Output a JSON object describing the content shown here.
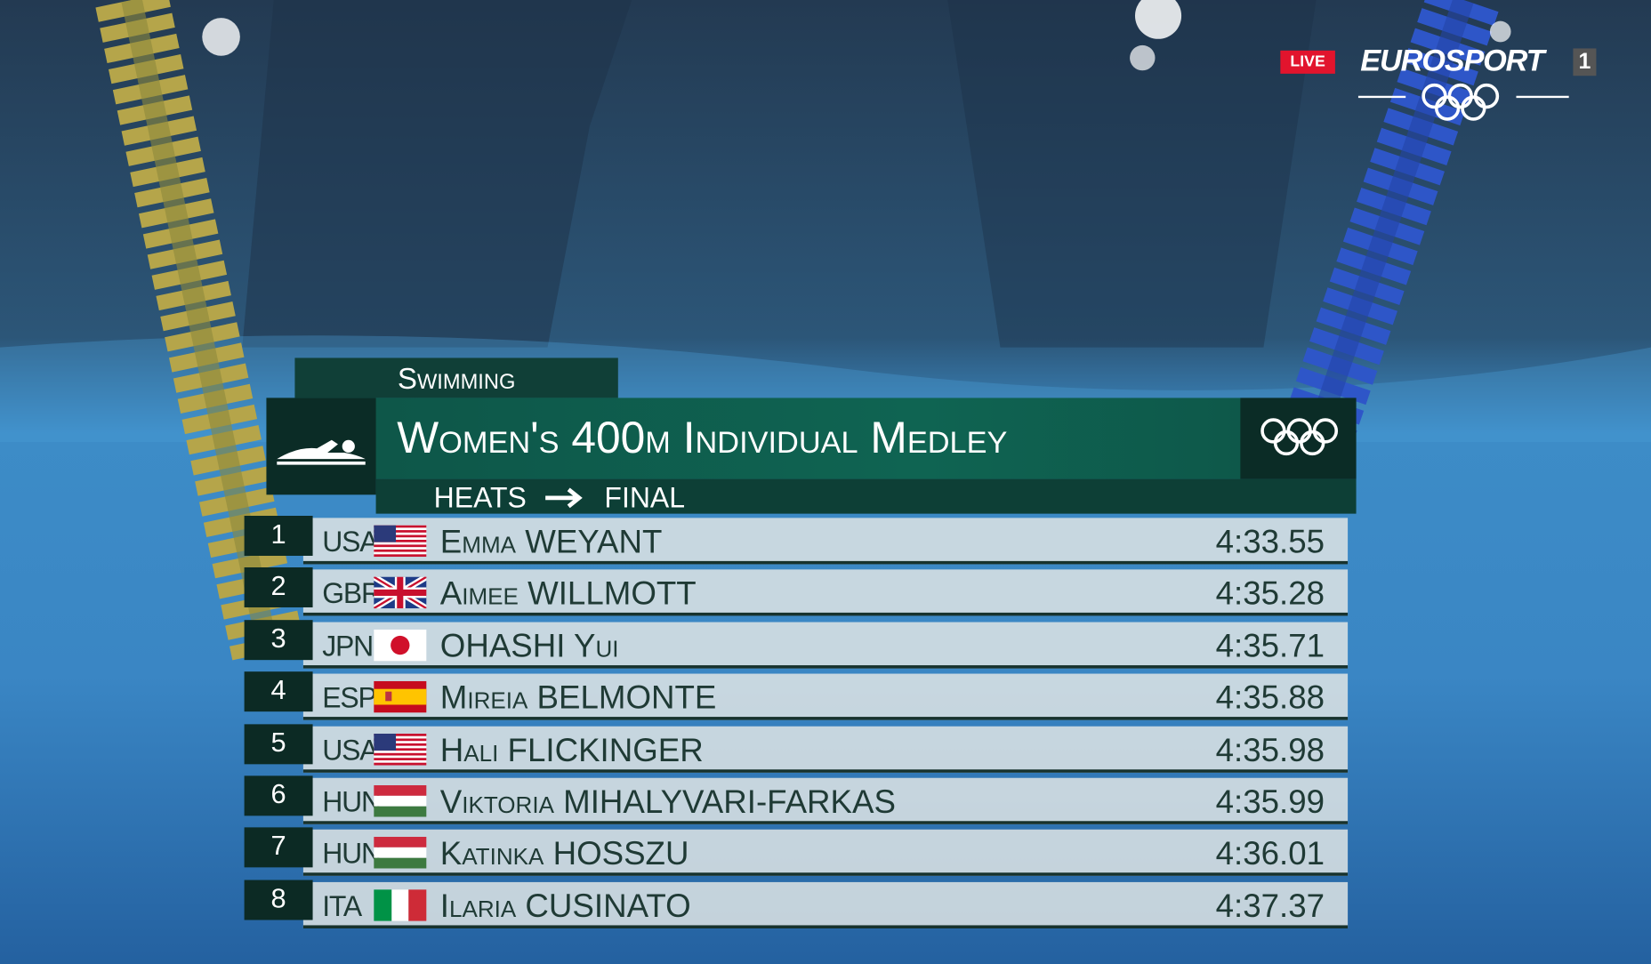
{
  "broadcast": {
    "live": "LIVE",
    "channel": "EUROSPORT",
    "channel_number": "1"
  },
  "graphic": {
    "sport": "Swimming",
    "event": "Women's 400m Individual Medley",
    "stage_from": "HEATS",
    "stage_to": "FINAL"
  },
  "results": [
    {
      "rank": 1,
      "country": "USA",
      "name": "Emma WEYANT",
      "time": "4:33.55"
    },
    {
      "rank": 2,
      "country": "GBR",
      "name": "Aimee WILLMOTT",
      "time": "4:35.28"
    },
    {
      "rank": 3,
      "country": "JPN",
      "name": "OHASHI Yui",
      "time": "4:35.71"
    },
    {
      "rank": 4,
      "country": "ESP",
      "name": "Mireia BELMONTE",
      "time": "4:35.88"
    },
    {
      "rank": 5,
      "country": "USA",
      "name": "Hali FLICKINGER",
      "time": "4:35.98"
    },
    {
      "rank": 6,
      "country": "HUN",
      "name": "Viktoria MIHALYVARI-FARKAS",
      "time": "4:35.99"
    },
    {
      "rank": 7,
      "country": "HUN",
      "name": "Katinka HOSSZU",
      "time": "4:36.01"
    },
    {
      "rank": 8,
      "country": "ITA",
      "name": "Ilaria CUSINATO",
      "time": "4:37.37"
    }
  ]
}
